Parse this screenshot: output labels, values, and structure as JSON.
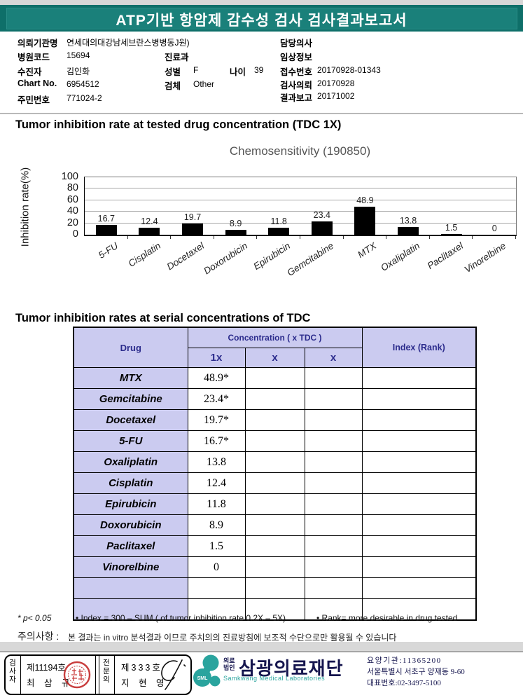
{
  "report": {
    "title": "ATP기반 항암제 감수성 검사 검사결과보고서",
    "section1_title": "Tumor inhibition rate at tested drug concentration (TDC 1X)",
    "section2_title": "Tumor inhibition rates at serial concentrations of TDC"
  },
  "patient": {
    "org": {
      "label": "의뢰기관명",
      "value": "연세대의대강남세브란스병병동J원)"
    },
    "hospital_code": {
      "label": "병원코드",
      "value": "15694"
    },
    "patient_name": {
      "label": "수진자",
      "value": "김인화"
    },
    "chart_no": {
      "label": "Chart No.",
      "value": "6954512"
    },
    "resident_no": {
      "label": "주민번호",
      "value": "771024-2"
    },
    "department": {
      "label": "진료과",
      "value": ""
    },
    "sex": {
      "label": "성별",
      "value": "F"
    },
    "age": {
      "label": "나이",
      "value": "39"
    },
    "specimen": {
      "label": "검체",
      "value": "Other"
    },
    "doctor": {
      "label": "담당의사",
      "value": ""
    },
    "clinical_info": {
      "label": "임상정보",
      "value": ""
    },
    "receipt_no": {
      "label": "접수번호",
      "value": "20170928-01343"
    },
    "request_date": {
      "label": "검사의뢰",
      "value": "20170928"
    },
    "report_date": {
      "label": "결과보고",
      "value": "20171002"
    }
  },
  "chart_data": {
    "type": "bar",
    "title": "Chemosensitivity (190850)",
    "ylabel": "Inhibition rate(%)",
    "xlabel": "",
    "categories": [
      "5-FU",
      "Cisplatin",
      "Docetaxel",
      "Doxorubicin",
      "Epirubicin",
      "Gemcitabine",
      "MTX",
      "Oxaliplatin",
      "Paclitaxel",
      "Vinorelbine"
    ],
    "values": [
      16.7,
      12.4,
      19.7,
      8.9,
      11.8,
      23.4,
      48.9,
      13.8,
      1.5,
      0
    ],
    "ylim": [
      0,
      100
    ],
    "yticks": [
      0,
      20,
      40,
      60,
      80,
      100
    ],
    "bar_color": "#000000",
    "grid": true,
    "legend": false
  },
  "table": {
    "headers": {
      "drug": "Drug",
      "concentration": "Concentration ( x TDC )",
      "sub": [
        "1x",
        "x",
        "x"
      ],
      "index": "Index (Rank)"
    },
    "rows": [
      {
        "drug": "MTX",
        "c1": "48.9*",
        "c2": "",
        "c3": "",
        "index": ""
      },
      {
        "drug": "Gemcitabine",
        "c1": "23.4*",
        "c2": "",
        "c3": "",
        "index": ""
      },
      {
        "drug": "Docetaxel",
        "c1": "19.7*",
        "c2": "",
        "c3": "",
        "index": ""
      },
      {
        "drug": "5-FU",
        "c1": "16.7*",
        "c2": "",
        "c3": "",
        "index": ""
      },
      {
        "drug": "Oxaliplatin",
        "c1": "13.8",
        "c2": "",
        "c3": "",
        "index": ""
      },
      {
        "drug": "Cisplatin",
        "c1": "12.4",
        "c2": "",
        "c3": "",
        "index": ""
      },
      {
        "drug": "Epirubicin",
        "c1": "11.8",
        "c2": "",
        "c3": "",
        "index": ""
      },
      {
        "drug": "Doxorubicin",
        "c1": "8.9",
        "c2": "",
        "c3": "",
        "index": ""
      },
      {
        "drug": "Paclitaxel",
        "c1": "1.5",
        "c2": "",
        "c3": "",
        "index": ""
      },
      {
        "drug": "Vinorelbine",
        "c1": "0",
        "c2": "",
        "c3": "",
        "index": ""
      },
      {
        "drug": "",
        "c1": "",
        "c2": "",
        "c3": "",
        "index": ""
      },
      {
        "drug": "",
        "c1": "",
        "c2": "",
        "c3": "",
        "index": ""
      }
    ]
  },
  "footnotes": [
    "* p< 0.05",
    "• Index = 300 – SUM ( of tumor inhibition rate 0.2X  –  5X)",
    "• Rank= more desirable in drug tested"
  ],
  "notice": {
    "label": "주의사항 :",
    "text": "본 결과는 in vitro 분석결과 이므로 주치의의 진료방침에 보조적 수단으로만 활용될 수 있습니다"
  },
  "footer": {
    "examiner": {
      "role": "검사자",
      "cert_no": "제11194호",
      "name": "최 삼 규"
    },
    "specialist": {
      "role": "전문의",
      "cert_no": "제333호",
      "name": "지 현 영"
    },
    "logo": {
      "sml": "SML",
      "org_type_line1": "의료",
      "org_type_line2": "법인",
      "org_name": "삼광의료재단",
      "org_name_en": "Samkwang Medical Laboratories",
      "teal": "#2aa49e",
      "navy": "#15154e"
    },
    "info_lines": [
      "요양기관:11365200",
      "서울특별시 서초구 양재동 9-60",
      "대표번호:02-3497-5100"
    ]
  },
  "colors": {
    "header_teal": "#0e6f69",
    "table_header_bg": "#cbcbf0",
    "table_header_text": "#2b2b8c",
    "bar": "#000000",
    "seal_red": "#c42a2a"
  }
}
